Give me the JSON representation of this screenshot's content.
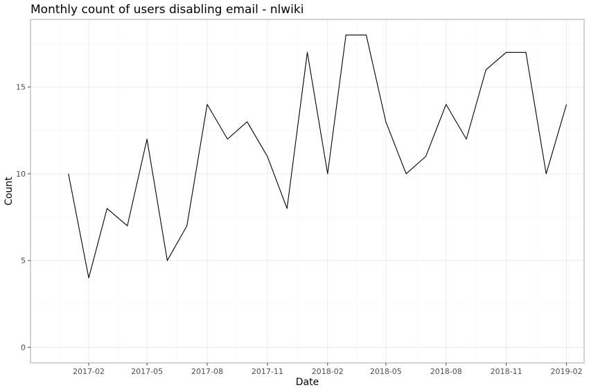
{
  "chart_data": {
    "type": "line",
    "title": "Monthly count of users disabling email - nlwiki",
    "xlabel": "Date",
    "ylabel": "Count",
    "ylim": [
      -0.9,
      18.9
    ],
    "xlim": [
      "2016-11-04",
      "2019-02-28"
    ],
    "y_ticks": [
      0,
      5,
      10,
      15
    ],
    "x_ticks": [
      {
        "date": "2017-02-01",
        "label": "2017-02"
      },
      {
        "date": "2017-05-01",
        "label": "2017-05"
      },
      {
        "date": "2017-08-01",
        "label": "2017-08"
      },
      {
        "date": "2017-11-01",
        "label": "2017-11"
      },
      {
        "date": "2018-02-01",
        "label": "2018-02"
      },
      {
        "date": "2018-05-01",
        "label": "2018-05"
      },
      {
        "date": "2018-08-01",
        "label": "2018-08"
      },
      {
        "date": "2018-11-01",
        "label": "2018-11"
      },
      {
        "date": "2019-02-01",
        "label": "2019-02"
      }
    ],
    "grid": true,
    "series": [
      {
        "name": "Count",
        "color": "#000000",
        "x": [
          "2017-01-01",
          "2017-02-01",
          "2017-03-01",
          "2017-04-01",
          "2017-05-01",
          "2017-06-01",
          "2017-07-01",
          "2017-08-01",
          "2017-09-01",
          "2017-10-01",
          "2017-11-01",
          "2017-12-01",
          "2018-01-01",
          "2018-02-01",
          "2018-03-01",
          "2018-04-01",
          "2018-05-01",
          "2018-06-01",
          "2018-07-01",
          "2018-08-01",
          "2018-09-01",
          "2018-10-01",
          "2018-11-01",
          "2018-12-01",
          "2019-01-01",
          "2019-02-01"
        ],
        "values": [
          10,
          4,
          8,
          7,
          12,
          5,
          7,
          14,
          12,
          13,
          11,
          8,
          17,
          10,
          18,
          18,
          13,
          10,
          11,
          14,
          12,
          16,
          17,
          17,
          10,
          14
        ]
      }
    ]
  },
  "colors": {
    "grid_major": "#ebebeb",
    "grid_minor": "#f5f5f5",
    "border": "#b3b3b3",
    "tick_text": "#4d4d4d",
    "line": "#000000"
  }
}
